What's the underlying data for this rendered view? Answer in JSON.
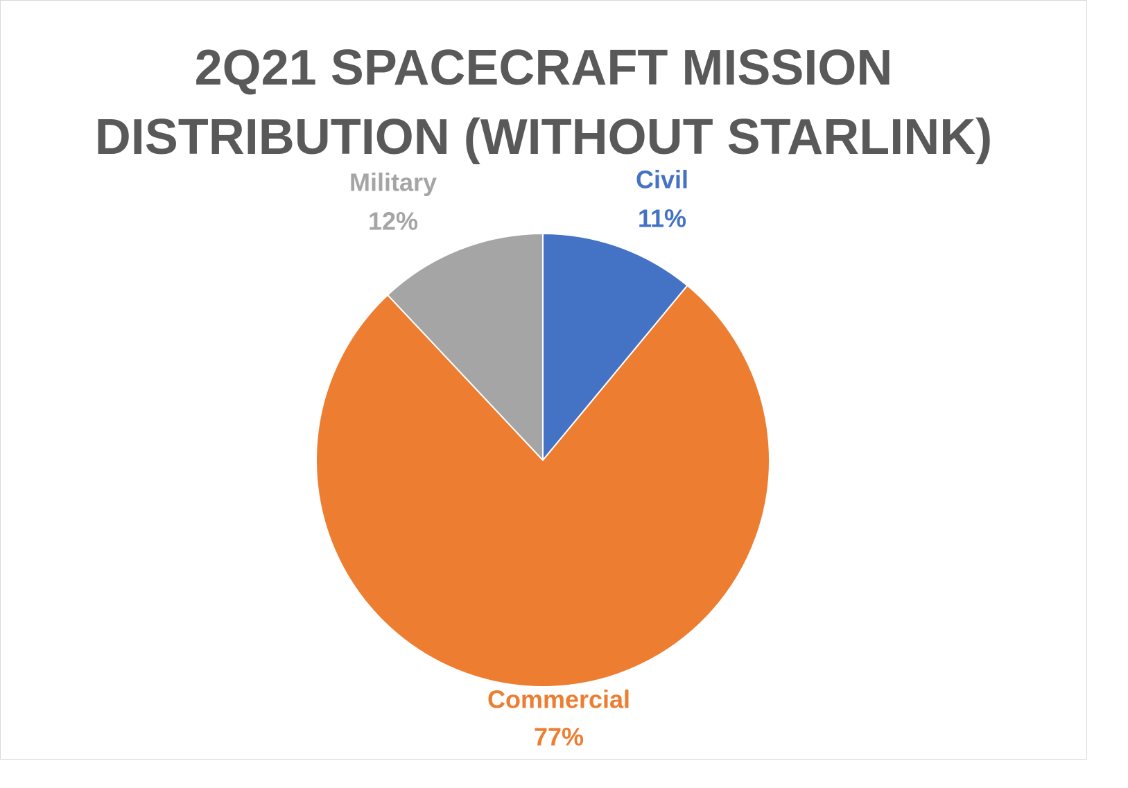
{
  "chart_data": {
    "type": "pie",
    "title": "2Q21 SPACECRAFT MISSION DISTRIBUTION (WITHOUT STARLINK)",
    "categories": [
      "Civil",
      "Commercial",
      "Military"
    ],
    "values": [
      11,
      77,
      12
    ],
    "value_labels": [
      "11%",
      "77%",
      "12%"
    ],
    "colors": [
      "#4472C4",
      "#ED7D31",
      "#A5A5A5"
    ],
    "start_angle": "12 o'clock",
    "direction": "clockwise",
    "legend": "none",
    "data_labels": "category and percentage, outside end"
  }
}
